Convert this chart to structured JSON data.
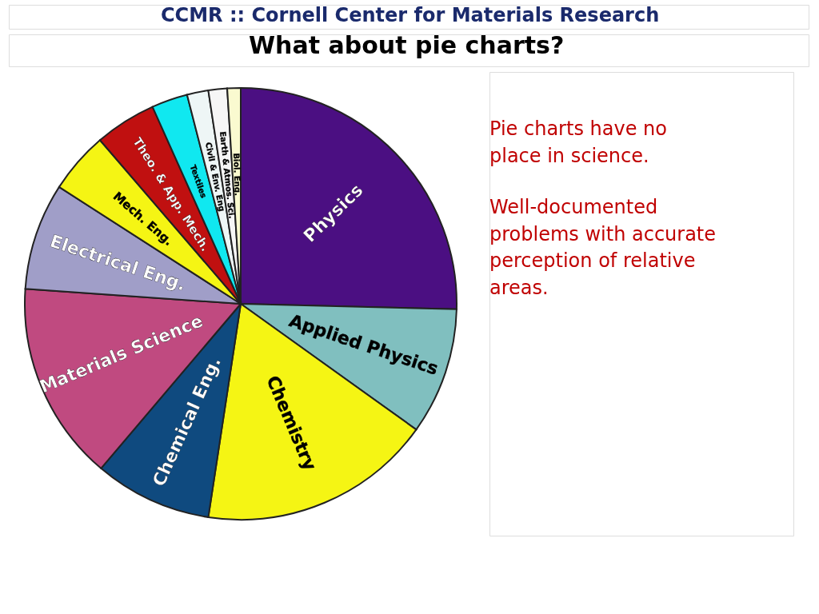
{
  "chart_data": {
    "type": "pie",
    "title": "What about pie charts?",
    "categories": [
      "Physics",
      "Applied Physics",
      "Chemistry",
      "Chemical Eng.",
      "Materials Science",
      "Electrical Eng.",
      "Mech. Eng.",
      "Theo. & App. Mech.",
      "Textiles",
      "Civil & Env. Eng",
      "Earth & Atmos. Sci.",
      "Biol. Eng."
    ],
    "values": [
      25.4,
      9.5,
      17.5,
      8.8,
      14.9,
      8.0,
      4.6,
      4.6,
      2.7,
      1.6,
      1.4,
      1.0
    ],
    "colors": [
      "#4b0f82",
      "#80bfbf",
      "#f5f514",
      "#0f4a7f",
      "#c04a80",
      "#a09ec8",
      "#f5f514",
      "#c01010",
      "#10e8f0",
      "#eef6f6",
      "#f6f6f6",
      "#fafad0"
    ],
    "legend": false,
    "annotations": [
      "CCMR :: Cornell Center for Materials Research",
      "Pie charts have no place in science.",
      "Well-documented problems with accurate perception of relative areas."
    ]
  }
}
